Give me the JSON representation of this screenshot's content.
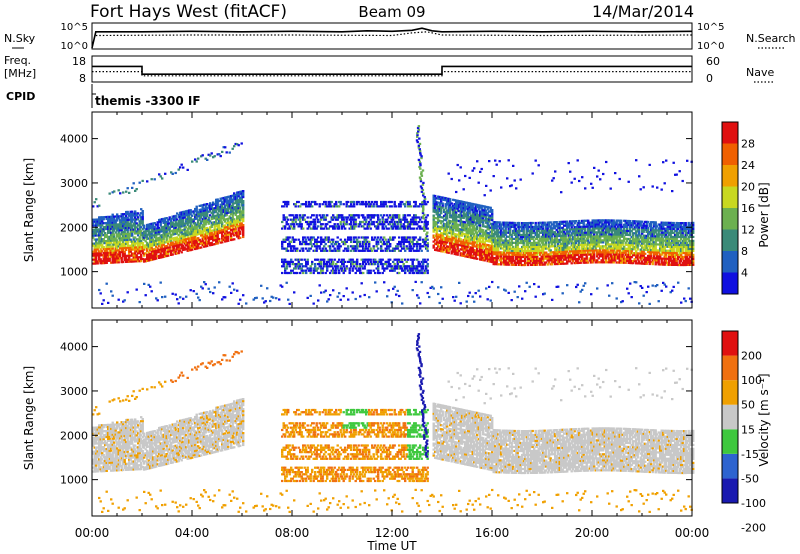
{
  "header": {
    "station": "Fort Hays West (fitACF)",
    "beam": "Beam 09",
    "date": "14/Mar/2014"
  },
  "colors": {
    "power": [
      "#1010e0",
      "#2060c0",
      "#3a8a78",
      "#6cb050",
      "#c8d820",
      "#f0a000",
      "#f06000",
      "#e01010"
    ],
    "velocity": [
      "#1a1ab0",
      "#2e64d0",
      "#3ec83e",
      "#c8c8c8",
      "#f0a000",
      "#f07010",
      "#e01010"
    ]
  },
  "chart_data": [
    {
      "panel": "noise",
      "type": "line",
      "left_label": "N.Sky",
      "left_ticks": [
        "10^5",
        "10^0"
      ],
      "right_ticks": [
        "10^5",
        "10^0"
      ],
      "right_legend": "N.Search",
      "series": [
        {
          "style": "solid",
          "x": [
            0,
            0.15,
            2,
            4,
            6,
            8,
            10,
            11,
            12,
            12.8,
            13.2,
            13.6,
            14,
            16,
            18,
            20,
            22,
            24
          ],
          "y": [
            0.2,
            3.3,
            3.3,
            3.4,
            3.3,
            3.4,
            3.3,
            3.5,
            3.4,
            3.6,
            4.0,
            3.5,
            3.3,
            3.4,
            3.3,
            3.4,
            3.3,
            3.4
          ]
        },
        {
          "style": "dotted",
          "x": [
            0.15,
            4,
            8,
            12,
            12.8,
            13.4,
            14,
            18,
            24
          ],
          "y": [
            2.6,
            2.7,
            2.7,
            2.6,
            3.1,
            3.3,
            2.7,
            2.6,
            2.7
          ]
        }
      ]
    },
    {
      "panel": "frequency",
      "type": "line",
      "left_label": "Freq.",
      "left_unit": "[MHz]",
      "left_ticks": [
        "18",
        "8"
      ],
      "right_ticks": [
        "60",
        "0"
      ],
      "right_legend": "Nave",
      "series": [
        {
          "style": "solid",
          "x": [
            0,
            2,
            2,
            14,
            14,
            24
          ],
          "y": [
            14,
            14,
            11,
            11,
            14,
            14
          ]
        },
        {
          "style": "dotted",
          "x": [
            0,
            2,
            2,
            14,
            14,
            24
          ],
          "y": [
            12,
            12,
            10.4,
            10.4,
            12,
            12
          ]
        }
      ]
    },
    {
      "panel": "cpid",
      "type": "table",
      "label": "CPID",
      "program": "themis -3300 IF"
    },
    {
      "panel": "power",
      "type": "heatmap",
      "ylabel": "Slant Range [km]",
      "yticks": [
        1000,
        2000,
        3000,
        4000
      ],
      "ylim": [
        180,
        4600
      ],
      "xlim": [
        0,
        24
      ],
      "colorbar_label": "Power [dB]",
      "colorbar_ticks": [
        4,
        8,
        12,
        16,
        20,
        24,
        28
      ]
    },
    {
      "panel": "velocity",
      "type": "heatmap",
      "ylabel": "Slant Range [km]",
      "yticks": [
        1000,
        2000,
        3000,
        4000
      ],
      "ylim": [
        180,
        4600
      ],
      "xlim": [
        0,
        24
      ],
      "xlabel": "Time UT",
      "xticks": [
        "00:00",
        "04:00",
        "08:00",
        "12:00",
        "16:00",
        "20:00",
        "00:00"
      ],
      "colorbar_label": "Velocity [m s⁻¹]",
      "colorbar_ticks": [
        200,
        100,
        50,
        15,
        -15,
        -50,
        -100,
        -200
      ]
    }
  ]
}
